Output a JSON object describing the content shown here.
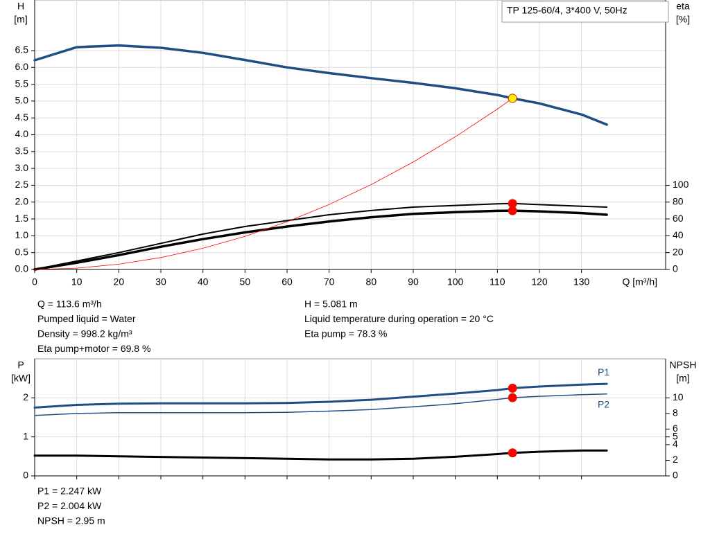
{
  "chart_data": [
    {
      "type": "line",
      "title": "TP 125-60/4, 3*400 V, 50Hz",
      "x_label": "Q [m³/h]",
      "y_label": [
        "H",
        "[m]"
      ],
      "y2_label": [
        "eta",
        "[%]"
      ],
      "xlim": [
        0,
        150
      ],
      "xticks": [
        0,
        10,
        20,
        30,
        40,
        50,
        60,
        70,
        80,
        90,
        100,
        110,
        120,
        130
      ],
      "show_xtick_labels": true,
      "ylim": [
        0,
        8
      ],
      "yticks": [
        {
          "value": 0,
          "label": "0.0"
        },
        0.5,
        {
          "value": 1,
          "label": "1.0"
        },
        1.5,
        {
          "value": 2,
          "label": "2.0"
        },
        2.5,
        {
          "value": 3,
          "label": "3.0"
        },
        3.5,
        {
          "value": 4,
          "label": "4.0"
        },
        4.5,
        {
          "value": 5,
          "label": "5.0"
        },
        5.5,
        {
          "value": 6,
          "label": "6.0"
        },
        6.5
      ],
      "y2lim": [
        0,
        320
      ],
      "y2ticks": [
        0,
        20,
        40,
        60,
        80,
        100
      ],
      "grid": true,
      "series": [
        {
          "color": "#1f4e84",
          "line_width": 3.5,
          "x": [
            0,
            10,
            20,
            30,
            40,
            50,
            60,
            70,
            80,
            90,
            100,
            110,
            113.6,
            120,
            130,
            136
          ],
          "values": [
            6.21,
            6.6,
            6.65,
            6.58,
            6.43,
            6.22,
            6.0,
            5.83,
            5.68,
            5.54,
            5.38,
            5.18,
            5.081,
            4.93,
            4.6,
            4.3
          ]
        },
        {
          "color": "#000000",
          "line_width": 2,
          "axis": "y2",
          "x": [
            0,
            10,
            20,
            30,
            40,
            50,
            60,
            70,
            80,
            90,
            100,
            110,
            113.6,
            120,
            130,
            136
          ],
          "values": [
            0,
            10,
            20,
            31,
            42,
            51,
            58,
            65,
            70,
            74,
            76,
            78,
            78.3,
            77,
            75,
            74
          ]
        },
        {
          "color": "#000000",
          "line_width": 3.5,
          "axis": "y2",
          "x": [
            0,
            10,
            20,
            30,
            40,
            50,
            60,
            70,
            80,
            90,
            100,
            110,
            113.6,
            120,
            130,
            136
          ],
          "values": [
            0,
            8,
            17,
            27,
            36,
            44,
            51,
            57,
            62,
            66,
            68,
            69.6,
            69.8,
            69,
            67,
            65
          ]
        },
        {
          "color": "#ff0000",
          "line_width": 0.8,
          "x": [
            0,
            10,
            20,
            30,
            40,
            50,
            60,
            70,
            80,
            90,
            100,
            110,
            113.6
          ],
          "values": [
            0,
            0.039,
            0.157,
            0.354,
            0.63,
            0.984,
            1.417,
            1.93,
            2.52,
            3.19,
            3.94,
            4.76,
            5.081
          ]
        }
      ],
      "points": [
        {
          "x": 113.6,
          "y": 5.081,
          "color": "#ffee00"
        },
        {
          "x": 113.6,
          "y": 78.3,
          "axis": "y2",
          "color": "#ff0000"
        },
        {
          "x": 113.6,
          "y": 69.8,
          "axis": "y2",
          "color": "#ff0000"
        }
      ],
      "annotations": [
        "Q = 113.6 m³/h",
        "Pumped liquid = Water",
        "Density = 998.2 kg/m³",
        "Eta pump+motor = 69.8 %",
        "H = 5.081 m",
        "Liquid temperature during operation = 20 °C",
        "Eta pump = 78.3 %"
      ]
    },
    {
      "type": "line",
      "y_label": [
        "P",
        "[kW]"
      ],
      "y2_label": [
        "NPSH",
        "[m]"
      ],
      "xlim": [
        0,
        150
      ],
      "xticks": [
        0,
        10,
        20,
        30,
        40,
        50,
        60,
        70,
        80,
        90,
        100,
        110,
        120,
        130
      ],
      "show_xtick_labels": false,
      "ylim": [
        0,
        3
      ],
      "yticks": [
        0,
        1,
        2
      ],
      "y2lim": [
        0,
        15
      ],
      "y2ticks": [
        0,
        2,
        4,
        5,
        6,
        8,
        10
      ],
      "grid": true,
      "series": [
        {
          "name": "P1",
          "color": "#1f4e84",
          "line_width": 3,
          "x": [
            0,
            10,
            20,
            30,
            40,
            50,
            60,
            70,
            80,
            90,
            100,
            110,
            113.6,
            120,
            130,
            136
          ],
          "values": [
            1.75,
            1.82,
            1.85,
            1.86,
            1.86,
            1.86,
            1.87,
            1.9,
            1.95,
            2.03,
            2.11,
            2.2,
            2.247,
            2.29,
            2.34,
            2.36
          ]
        },
        {
          "name": "P2",
          "color": "#1f4e84",
          "line_width": 1.5,
          "x": [
            0,
            10,
            20,
            30,
            40,
            50,
            60,
            70,
            80,
            90,
            100,
            110,
            113.6,
            120,
            130,
            136
          ],
          "values": [
            1.55,
            1.6,
            1.62,
            1.62,
            1.62,
            1.62,
            1.63,
            1.66,
            1.7,
            1.77,
            1.85,
            1.96,
            2.004,
            2.04,
            2.08,
            2.1
          ]
        },
        {
          "color": "#000000",
          "line_width": 3,
          "axis": "y2",
          "x": [
            0,
            10,
            20,
            40,
            60,
            70,
            80,
            90,
            100,
            110,
            113.6,
            120,
            130,
            136
          ],
          "values": [
            2.6,
            2.6,
            2.5,
            2.35,
            2.2,
            2.1,
            2.1,
            2.2,
            2.45,
            2.8,
            2.95,
            3.1,
            3.25,
            3.25
          ]
        }
      ],
      "points": [
        {
          "x": 113.6,
          "y": 2.247,
          "color": "#ff0000"
        },
        {
          "x": 113.6,
          "y": 2.004,
          "color": "#ff0000"
        },
        {
          "x": 113.6,
          "y": 2.95,
          "axis": "y2",
          "color": "#ff0000"
        }
      ],
      "annotations": [
        "P1 = 2.247 kW",
        "P2 = 2.004 kW",
        "NPSH = 2.95 m"
      ]
    }
  ]
}
